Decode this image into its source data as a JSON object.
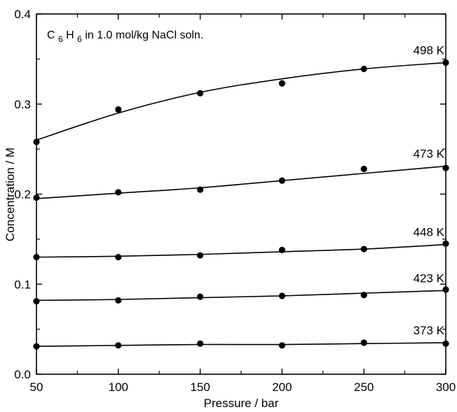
{
  "chart_data": {
    "type": "scatter",
    "xlabel": "Pressure / bar",
    "ylabel": "Concentration / M",
    "xlim": [
      50,
      300
    ],
    "ylim": [
      0.0,
      0.4
    ],
    "xticks": [
      "50",
      "100",
      "150",
      "200",
      "250",
      "300"
    ],
    "yticks": [
      "0.0",
      "0.1",
      "0.2",
      "0.3",
      "0.4"
    ],
    "grid": false,
    "annotation": {
      "parts": [
        "C",
        "6",
        "H",
        "6",
        " in 1.0 mol/kg NaCl soln."
      ]
    },
    "x": [
      50,
      100,
      150,
      200,
      250,
      300
    ],
    "series": [
      {
        "name": "498 K",
        "points": [
          0.258,
          0.294,
          0.312,
          0.323,
          0.339,
          0.346
        ],
        "fit": [
          0.26,
          0.29,
          0.313,
          0.328,
          0.339,
          0.346
        ]
      },
      {
        "name": "473 K",
        "points": [
          0.196,
          0.202,
          0.205,
          0.215,
          0.228,
          0.229
        ],
        "fit": [
          0.195,
          0.201,
          0.207,
          0.215,
          0.223,
          0.231
        ]
      },
      {
        "name": "448 K",
        "points": [
          0.13,
          0.13,
          0.132,
          0.138,
          0.139,
          0.145
        ],
        "fit": [
          0.13,
          0.131,
          0.133,
          0.136,
          0.139,
          0.144
        ]
      },
      {
        "name": "423 K",
        "points": [
          0.081,
          0.082,
          0.086,
          0.087,
          0.088,
          0.094
        ],
        "fit": [
          0.082,
          0.083,
          0.085,
          0.087,
          0.09,
          0.093
        ]
      },
      {
        "name": "373 K",
        "points": [
          0.031,
          0.032,
          0.034,
          0.032,
          0.035,
          0.034
        ],
        "fit": [
          0.031,
          0.032,
          0.033,
          0.033,
          0.034,
          0.035
        ]
      }
    ]
  }
}
